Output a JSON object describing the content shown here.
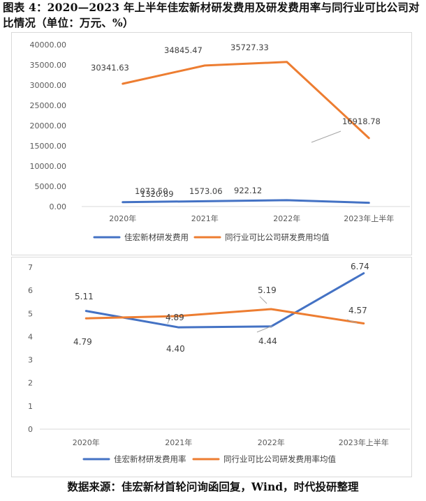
{
  "title": "图表 4：2020—2023 年上半年佳宏新材研发费用及研发费用率与同行业可比公司对比情况（单位：万元、%）",
  "source": "数据来源：佳宏新材首轮问询函回复，Wind，时代投研整理",
  "chart_data": [
    {
      "type": "line",
      "categories": [
        "2020年",
        "2021年",
        "2022年",
        "2023年上半年"
      ],
      "ylim": [
        0,
        40000
      ],
      "yticks": [
        "0.00",
        "5000.00",
        "10000.00",
        "15000.00",
        "20000.00",
        "25000.00",
        "30000.00",
        "35000.00",
        "40000.00"
      ],
      "legend_position": "bottom",
      "grid": false,
      "series": [
        {
          "name": "佳宏新材研发费用",
          "color": "#4472c4",
          "values": [
            1073.5,
            1320.89,
            1573.06,
            922.12
          ],
          "labels": [
            "1073.50",
            "1320.89",
            "1573.06",
            "922.12"
          ]
        },
        {
          "name": "同行业可比公司研发费用均值",
          "color": "#ed7d31",
          "values": [
            30341.63,
            34845.47,
            35727.33,
            16918.78
          ],
          "labels": [
            "30341.63",
            "34845.47",
            "35727.33",
            "16918.78"
          ]
        }
      ]
    },
    {
      "type": "line",
      "categories": [
        "2020年",
        "2021年",
        "2022年",
        "2023年上半年"
      ],
      "ylim": [
        0,
        7
      ],
      "yticks": [
        "0",
        "1",
        "2",
        "3",
        "4",
        "5",
        "6",
        "7"
      ],
      "legend_position": "bottom",
      "grid": false,
      "series": [
        {
          "name": "佳宏新材研发费用率",
          "color": "#4472c4",
          "values": [
            5.11,
            4.4,
            4.44,
            6.74
          ],
          "labels": [
            "5.11",
            "4.40",
            "4.44",
            "6.74"
          ]
        },
        {
          "name": "同行业可比公司研发费用率均值",
          "color": "#ed7d31",
          "values": [
            4.79,
            4.89,
            5.19,
            4.57
          ],
          "labels": [
            "4.79",
            "4.89",
            "5.19",
            "4.57"
          ]
        }
      ]
    }
  ]
}
